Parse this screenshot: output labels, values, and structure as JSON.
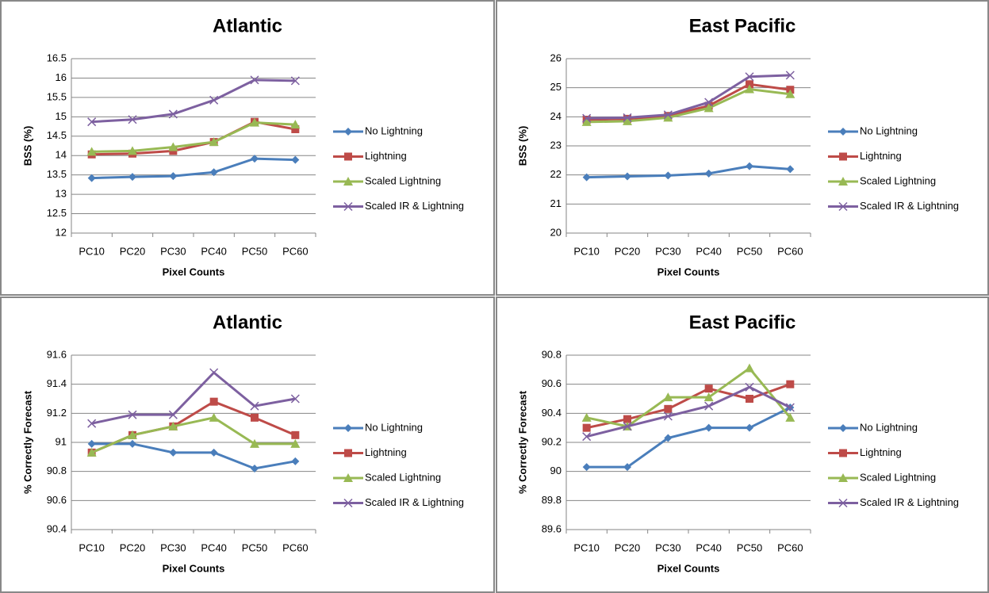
{
  "chart_data": [
    {
      "type": "line",
      "title": "Atlantic",
      "y_label": "BSS (%)",
      "x_label": "Pixel Counts",
      "categories": [
        "PC10",
        "PC20",
        "PC30",
        "PC40",
        "PC50",
        "PC60"
      ],
      "ylim": [
        12,
        16.5
      ],
      "yticks": [
        12,
        12.5,
        13,
        13.5,
        14,
        14.5,
        15,
        15.5,
        16,
        16.5
      ],
      "grid": true,
      "series": [
        {
          "name": "No Lightning",
          "color": "#4a7ebb",
          "marker": "diamond",
          "values": [
            13.42,
            13.45,
            13.47,
            13.57,
            13.92,
            13.89
          ]
        },
        {
          "name": "Lightning",
          "color": "#be4b48",
          "marker": "square",
          "values": [
            14.03,
            14.05,
            14.12,
            14.35,
            14.87,
            14.68
          ]
        },
        {
          "name": "Scaled Lightning",
          "color": "#98b954",
          "marker": "triangle",
          "values": [
            14.1,
            14.12,
            14.22,
            14.35,
            14.85,
            14.8
          ]
        },
        {
          "name": "Scaled IR & Lightning",
          "color": "#7d60a0",
          "marker": "x",
          "values": [
            14.87,
            14.93,
            15.07,
            15.43,
            15.95,
            15.93
          ]
        }
      ]
    },
    {
      "type": "line",
      "title": "East Pacific",
      "y_label": "BSS (%)",
      "x_label": "Pixel Counts",
      "categories": [
        "PC10",
        "PC20",
        "PC30",
        "PC40",
        "PC50",
        "PC60"
      ],
      "ylim": [
        20,
        26
      ],
      "yticks": [
        20,
        21,
        22,
        23,
        24,
        25,
        26
      ],
      "grid": true,
      "series": [
        {
          "name": "No Lightning",
          "color": "#4a7ebb",
          "marker": "diamond",
          "values": [
            21.92,
            21.95,
            21.98,
            22.05,
            22.3,
            22.2
          ]
        },
        {
          "name": "Lightning",
          "color": "#be4b48",
          "marker": "square",
          "values": [
            23.9,
            23.93,
            24.03,
            24.38,
            25.12,
            24.93
          ]
        },
        {
          "name": "Scaled Lightning",
          "color": "#98b954",
          "marker": "triangle",
          "values": [
            23.82,
            23.85,
            23.97,
            24.3,
            24.95,
            24.78
          ]
        },
        {
          "name": "Scaled IR & Lightning",
          "color": "#7d60a0",
          "marker": "x",
          "values": [
            23.95,
            23.97,
            24.07,
            24.5,
            25.38,
            25.43
          ]
        }
      ]
    },
    {
      "type": "line",
      "title": "Atlantic",
      "y_label": "% Correctly Forecast",
      "x_label": "Pixel Counts",
      "categories": [
        "PC10",
        "PC20",
        "PC30",
        "PC40",
        "PC50",
        "PC60"
      ],
      "ylim": [
        90.4,
        91.6
      ],
      "yticks": [
        90.4,
        90.6,
        90.8,
        91,
        91.2,
        91.4,
        91.6
      ],
      "grid": true,
      "series": [
        {
          "name": "No Lightning",
          "color": "#4a7ebb",
          "marker": "diamond",
          "values": [
            90.99,
            90.99,
            90.93,
            90.93,
            90.82,
            90.87
          ]
        },
        {
          "name": "Lightning",
          "color": "#be4b48",
          "marker": "square",
          "values": [
            90.93,
            91.05,
            91.11,
            91.28,
            91.17,
            91.05
          ]
        },
        {
          "name": "Scaled Lightning",
          "color": "#98b954",
          "marker": "triangle",
          "values": [
            90.93,
            91.05,
            91.11,
            91.17,
            90.99,
            90.99
          ]
        },
        {
          "name": "Scaled IR & Lightning",
          "color": "#7d60a0",
          "marker": "x",
          "values": [
            91.13,
            91.19,
            91.19,
            91.48,
            91.25,
            91.3
          ]
        }
      ]
    },
    {
      "type": "line",
      "title": "East Pacific",
      "y_label": "% Correctly Forecast",
      "x_label": "Pixel Counts",
      "categories": [
        "PC10",
        "PC20",
        "PC30",
        "PC40",
        "PC50",
        "PC60"
      ],
      "ylim": [
        89.6,
        90.8
      ],
      "yticks": [
        89.6,
        89.8,
        90,
        90.2,
        90.4,
        90.6,
        90.8
      ],
      "grid": true,
      "series": [
        {
          "name": "No Lightning",
          "color": "#4a7ebb",
          "marker": "diamond",
          "values": [
            90.03,
            90.03,
            90.23,
            90.3,
            90.3,
            90.44
          ]
        },
        {
          "name": "Lightning",
          "color": "#be4b48",
          "marker": "square",
          "values": [
            90.3,
            90.36,
            90.43,
            90.57,
            90.5,
            90.6
          ]
        },
        {
          "name": "Scaled Lightning",
          "color": "#98b954",
          "marker": "triangle",
          "values": [
            90.37,
            90.31,
            90.51,
            90.51,
            90.71,
            90.37
          ]
        },
        {
          "name": "Scaled IR & Lightning",
          "color": "#7d60a0",
          "marker": "x",
          "values": [
            90.24,
            90.31,
            90.38,
            90.45,
            90.58,
            90.44
          ]
        }
      ]
    }
  ]
}
